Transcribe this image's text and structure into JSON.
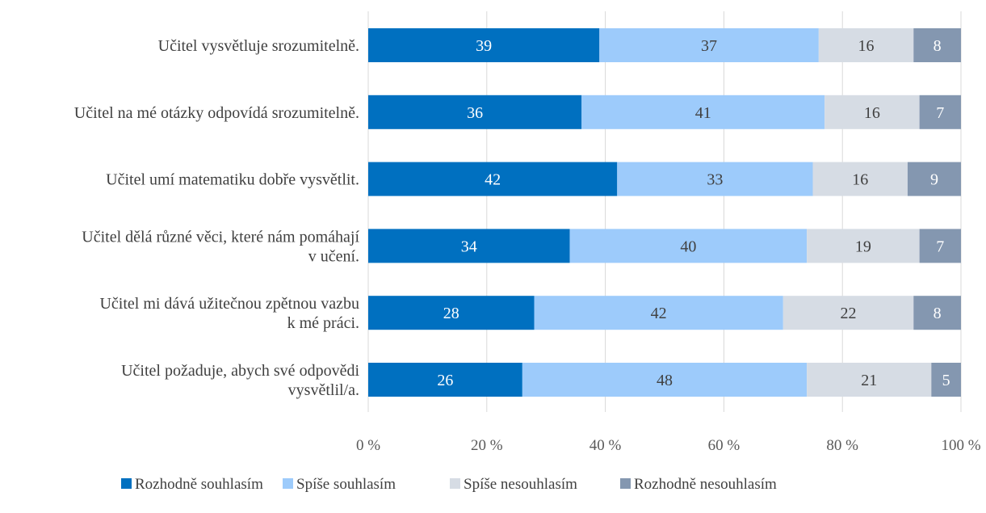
{
  "chart_data": {
    "type": "bar",
    "orientation": "horizontal",
    "stacked": "percent",
    "categories": [
      [
        "Učitel vysvětluje srozumitelně."
      ],
      [
        "Učitel na mé otázky odpovídá srozumitelně."
      ],
      [
        "Učitel umí matematiku dobře vysvětlit."
      ],
      [
        "Učitel dělá různé věci, které nám pomáhají",
        "v učení."
      ],
      [
        "Učitel mi dává užitečnou zpětnou vazbu",
        "k mé práci."
      ],
      [
        "Učitel požaduje, abych své odpovědi",
        "vysvětlil/a."
      ]
    ],
    "series": [
      {
        "name": "Rozhodně souhlasím",
        "color": "#0070c0",
        "label_color": "#ffffff",
        "values": [
          39,
          36,
          42,
          34,
          28,
          26
        ]
      },
      {
        "name": "Spíše souhlasím",
        "color": "#9dcbfb",
        "label_color": "#404040",
        "values": [
          37,
          41,
          33,
          40,
          42,
          48
        ]
      },
      {
        "name": "Spíše nesouhlasím",
        "color": "#d6dce4",
        "label_color": "#404040",
        "values": [
          16,
          16,
          16,
          19,
          22,
          21
        ]
      },
      {
        "name": "Rozhodně nesouhlasím",
        "color": "#8497b0",
        "label_color": "#ffffff",
        "values": [
          8,
          7,
          9,
          7,
          8,
          5
        ]
      }
    ],
    "x_ticks": [
      "0 %",
      "20 %",
      "40 %",
      "60 %",
      "80 %",
      "100 %"
    ],
    "xlim": [
      0,
      100
    ],
    "grid": true,
    "legend_position": "bottom"
  }
}
